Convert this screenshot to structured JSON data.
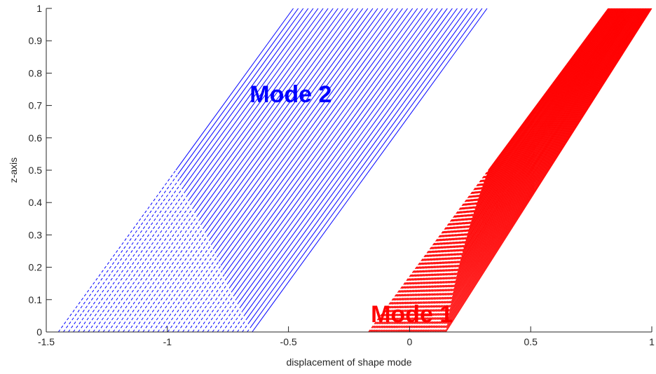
{
  "chart_data": {
    "type": "line",
    "title": "",
    "xlabel": "displacement of shape mode",
    "ylabel": "z-axis",
    "xlim": [
      -1.5,
      1
    ],
    "ylim": [
      0,
      1
    ],
    "xticks": [
      -1.5,
      -1,
      -0.5,
      0,
      0.5,
      1
    ],
    "xtick_labels": [
      "-1.5",
      "-1",
      "-0.5",
      "0",
      "0.5",
      "1"
    ],
    "yticks": [
      0,
      0.1,
      0.2,
      0.3,
      0.4,
      0.5,
      0.6,
      0.7,
      0.8,
      0.9,
      1
    ],
    "ytick_labels": [
      "0",
      "0.1",
      "0.2",
      "0.3",
      "0.4",
      "0.5",
      "0.6",
      "0.7",
      "0.8",
      "0.9",
      "1"
    ],
    "grid": false,
    "colors": {
      "mode1": "#ff0000",
      "mode2": "#0000ff",
      "axis": "#262626"
    },
    "series": [
      {
        "group": "Mode 2",
        "color": "#0000ff",
        "line_count": 40,
        "x_at_z0": [
          -1.45,
          -0.65
        ],
        "x_at_z1": [
          -0.48,
          0.32
        ],
        "dashed_lower_part": true
      },
      {
        "group": "Mode 1",
        "color": "#ff0000",
        "line_count": 80,
        "x_at_z0": [
          -0.17,
          0.15
        ],
        "x_at_z1": [
          0.82,
          1.0
        ],
        "dashed_lower_part": true
      }
    ],
    "annotations": [
      {
        "text": "Mode 2",
        "x": -0.66,
        "y": 0.71,
        "color": "#0000ff"
      },
      {
        "text": "Mode 1",
        "x": -0.16,
        "y": 0.03,
        "color": "#ff0000"
      }
    ]
  }
}
